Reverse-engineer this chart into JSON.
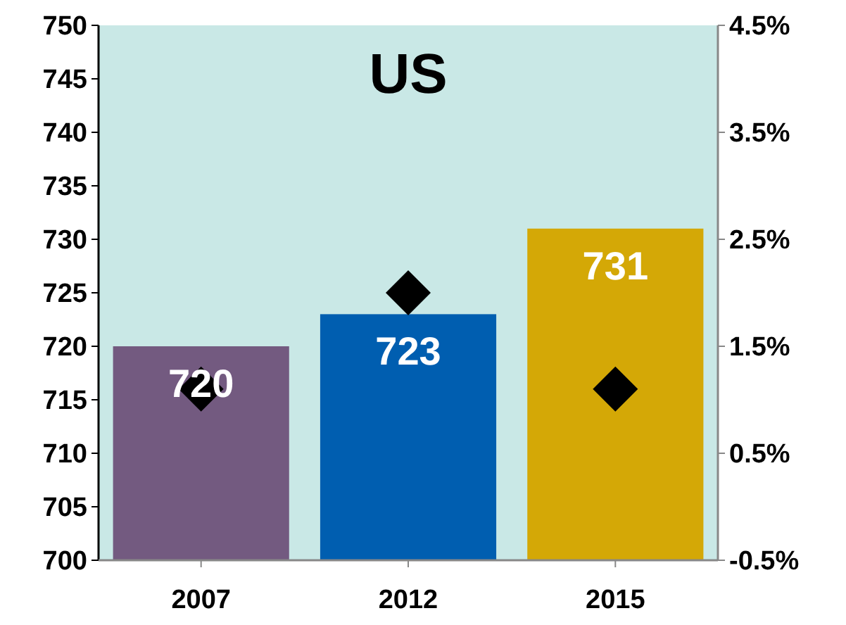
{
  "chart_data": {
    "type": "bar",
    "title": "US",
    "categories": [
      "2007",
      "2012",
      "2015"
    ],
    "series": [
      {
        "colors": [
          "#735a80",
          "#005eb0",
          "#d4a806"
        ],
        "values": [
          720,
          723,
          731
        ],
        "value_labels": [
          "720",
          "723",
          "731"
        ]
      },
      {
        "type": "scatter",
        "axis": "y2",
        "color": "#000000",
        "marker": "diamond",
        "values": [
          1.1,
          2.0,
          1.1
        ]
      }
    ],
    "ylim": [
      700,
      750
    ],
    "yticks": [
      700,
      705,
      710,
      715,
      720,
      725,
      730,
      735,
      740,
      745,
      750
    ],
    "y2lim": [
      -0.5,
      4.5
    ],
    "y2ticks": [
      {
        "value": -0.5,
        "label": "-0.5%"
      },
      {
        "value": 0.5,
        "label": "0.5%"
      },
      {
        "value": 1.5,
        "label": "1.5%"
      },
      {
        "value": 2.5,
        "label": "2.5%"
      },
      {
        "value": 3.5,
        "label": "3.5%"
      },
      {
        "value": 4.5,
        "label": "4.5%"
      }
    ],
    "grid": false
  }
}
